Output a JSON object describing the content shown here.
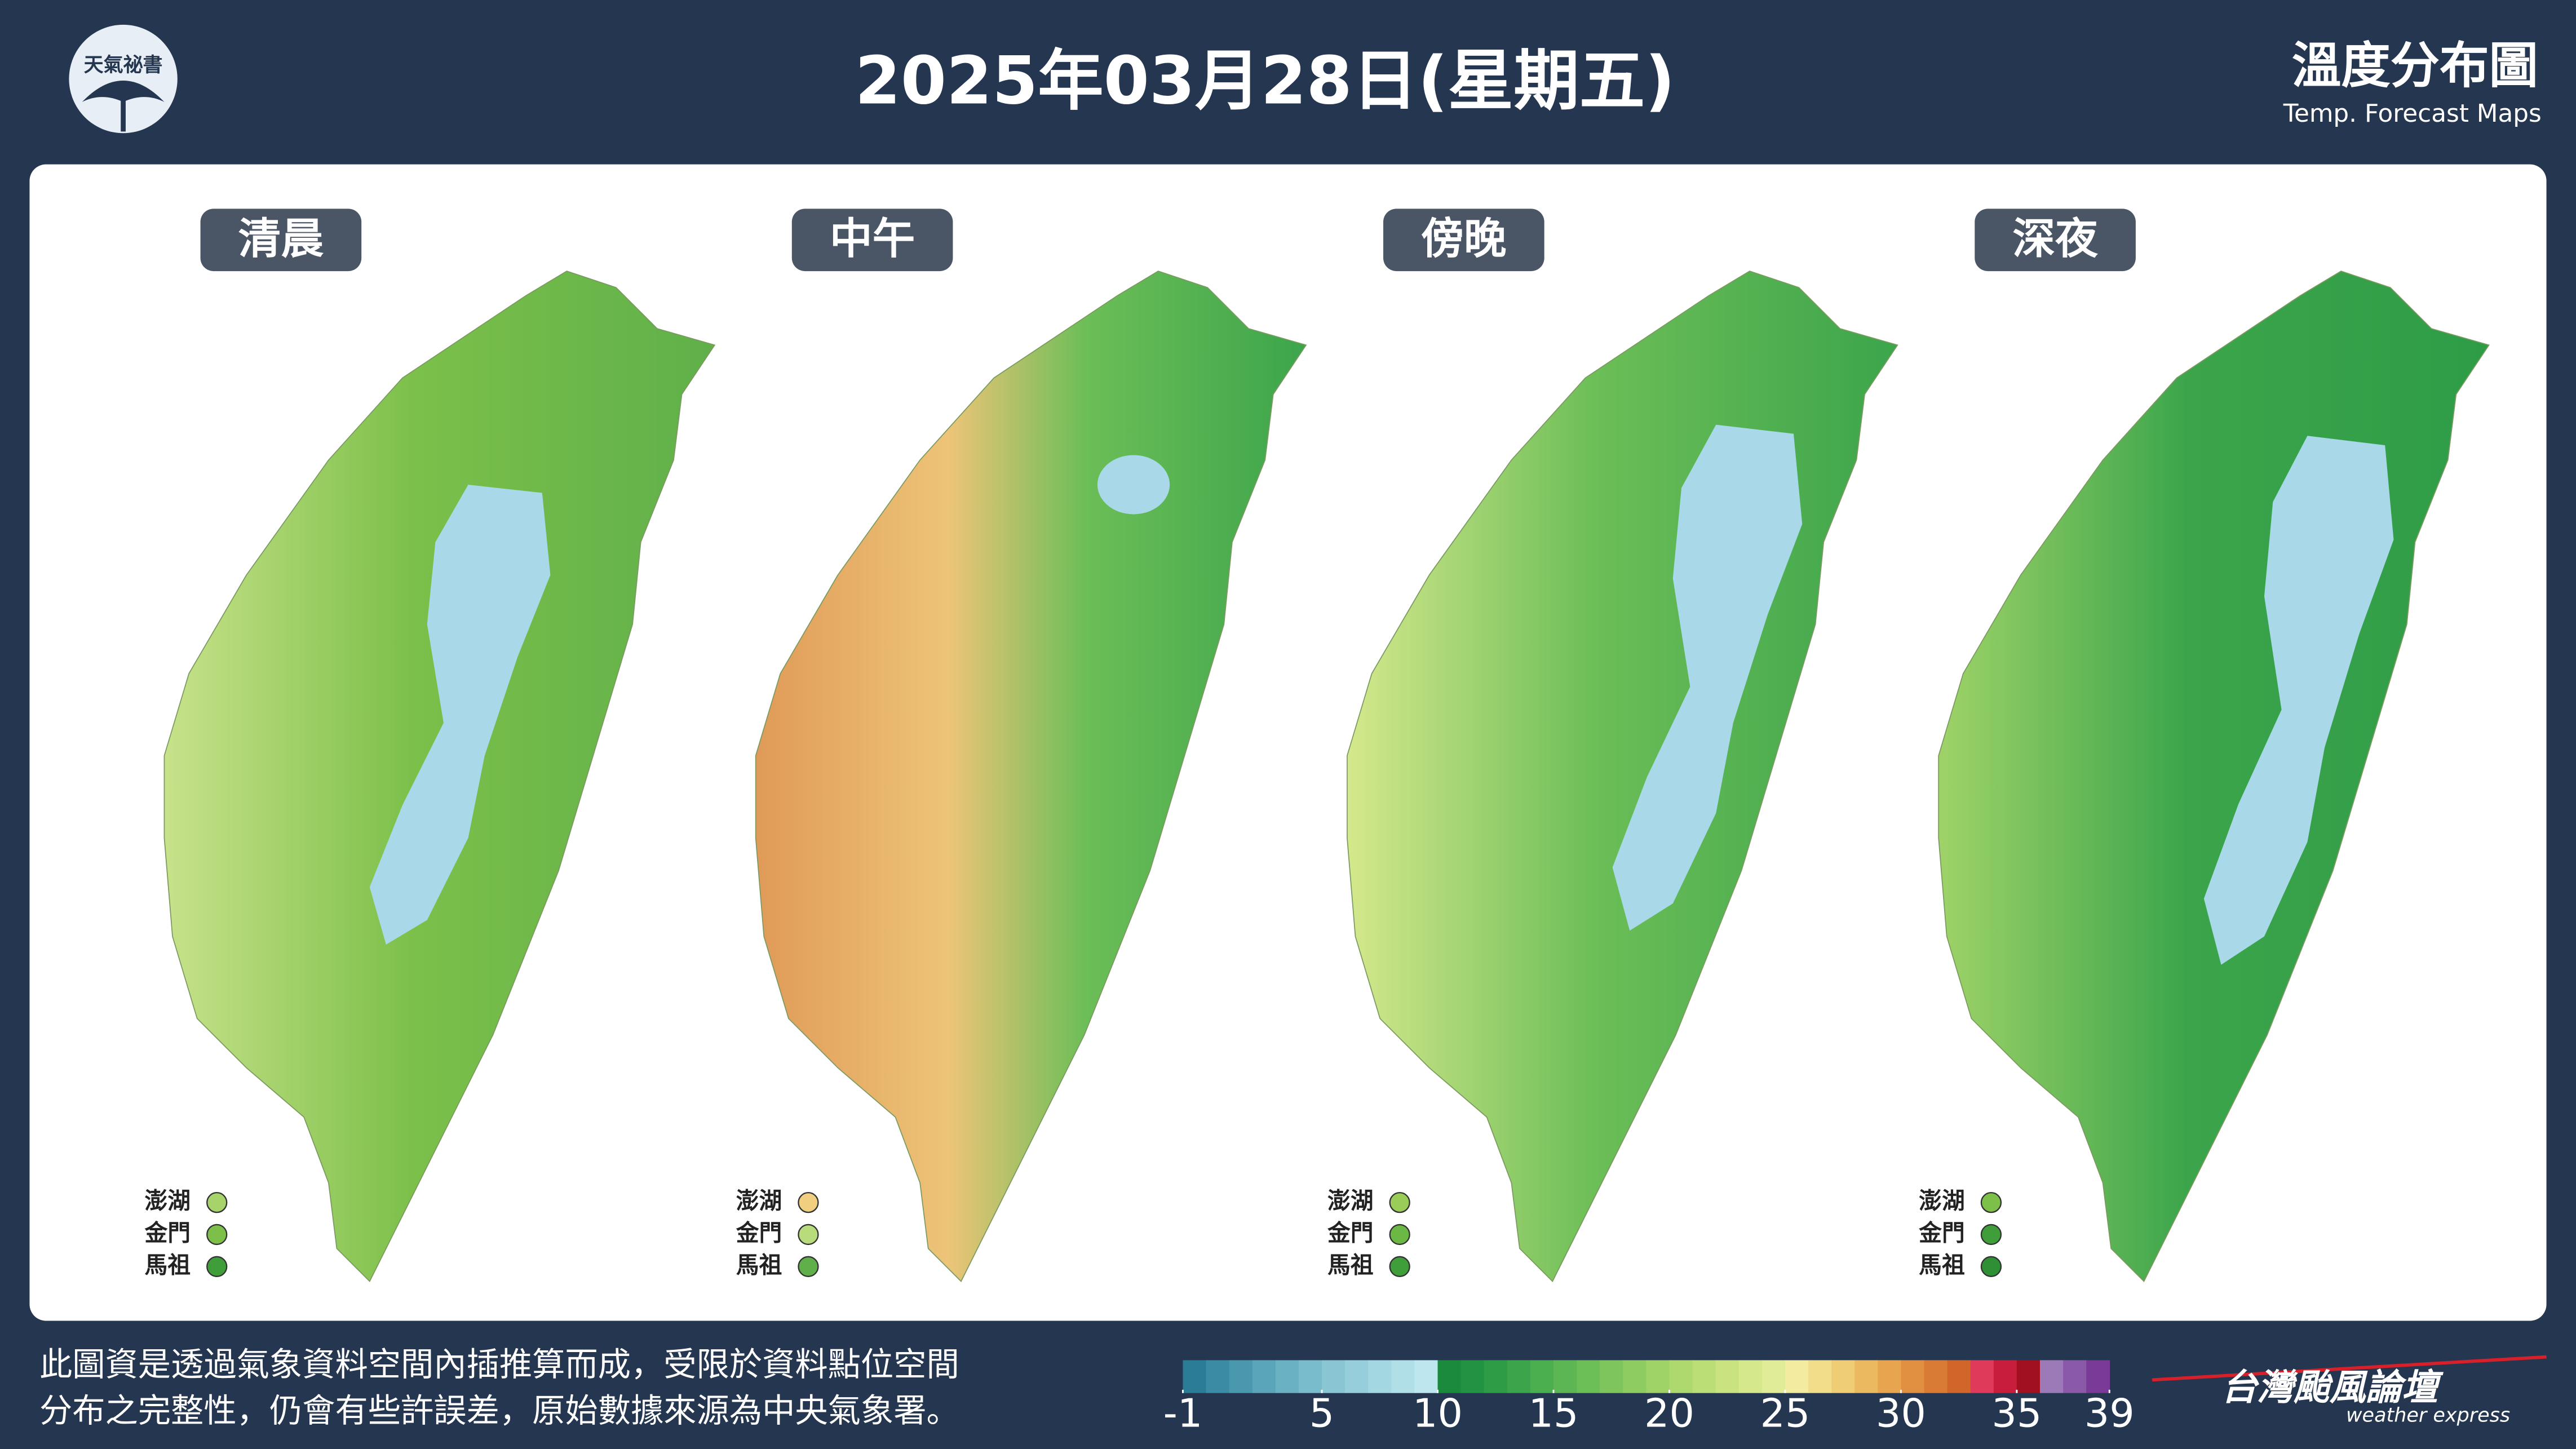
{
  "header": {
    "logo": "天氣祕書",
    "title": "2025年03月28日(星期五)",
    "map_title": "溫度分布圖",
    "map_subtitle": "Temp. Forecast Maps"
  },
  "panels": [
    {
      "label": "清晨",
      "islands": [
        {
          "name": "澎湖",
          "color": "#a6d36a"
        },
        {
          "name": "金門",
          "color": "#7cc04a"
        },
        {
          "name": "馬祖",
          "color": "#3f9e3a"
        }
      ]
    },
    {
      "label": "中午",
      "islands": [
        {
          "name": "澎湖",
          "color": "#f0d080"
        },
        {
          "name": "金門",
          "color": "#b8dc7c"
        },
        {
          "name": "馬祖",
          "color": "#5fb04a"
        }
      ]
    },
    {
      "label": "傍晚",
      "islands": [
        {
          "name": "澎湖",
          "color": "#9acc58"
        },
        {
          "name": "金門",
          "color": "#6cb844"
        },
        {
          "name": "馬祖",
          "color": "#3f9e3a"
        }
      ]
    },
    {
      "label": "深夜",
      "islands": [
        {
          "name": "澎湖",
          "color": "#7cc04a"
        },
        {
          "name": "金門",
          "color": "#3f9e3a"
        },
        {
          "name": "馬祖",
          "color": "#2e8f35"
        }
      ]
    }
  ],
  "footer": {
    "note": [
      "此圖資是透過氣象資料空間內插推算而成，受限於資料點位空間",
      "分布之完整性，仍會有些許誤差，原始數據來源為中央氣象署。"
    ],
    "brand": "台灣颱風論壇",
    "brand_sub": "weather express"
  },
  "colorbar": {
    "lim": [
      -1,
      39
    ],
    "ticks": [
      -1,
      5,
      10,
      15,
      20,
      25,
      30,
      35,
      39
    ],
    "colors": [
      "#2b7c96",
      "#3a8ba3",
      "#4a98ae",
      "#5aa5b9",
      "#6ab1c3",
      "#79bccc",
      "#88c6d4",
      "#96cfdb",
      "#a3d7e2",
      "#b0dfe8",
      "#bde6ee",
      "#1a8a3c",
      "#229343",
      "#2e9c47",
      "#3ca54b",
      "#4bae4f",
      "#5bb653",
      "#6cbe57",
      "#7dc55c",
      "#8ecc62",
      "#9fd368",
      "#aed96f",
      "#bcde77",
      "#c9e381",
      "#d5e88c",
      "#e0ec98",
      "#f3eba0",
      "#f1dd8a",
      "#efcd74",
      "#ebba60",
      "#e6a54e",
      "#e09040",
      "#d97b34",
      "#d0662a",
      "#e03a5a",
      "#c81e3c",
      "#a01020",
      "#9c7ab8",
      "#8a5aa8",
      "#7a3a98"
    ]
  }
}
